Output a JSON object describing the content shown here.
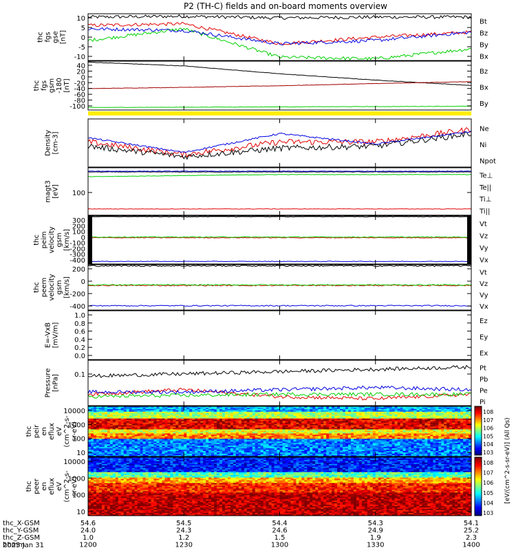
{
  "title": "P2 (TH-C) fields and on-board moments overview",
  "panels": [
    {
      "id": "fgs-gse",
      "ylabel": [
        "thc",
        "fgs",
        "gse",
        "[nT]"
      ],
      "ticks": [
        "10",
        "5",
        "0",
        "-5",
        "-10"
      ],
      "legend": [
        {
          "label": "Bt",
          "color": "#000000"
        },
        {
          "label": "Bz",
          "color": "#e00000"
        },
        {
          "label": "By",
          "color": "#00d000"
        },
        {
          "label": "Bx",
          "color": "#0000e0"
        }
      ]
    },
    {
      "id": "fgs-gsm",
      "ylabel": [
        "thc",
        "fgs",
        "gsm",
        "-180",
        "[nT]"
      ],
      "ticks": [
        "40",
        "20",
        "0",
        "-20",
        "-40",
        "-60",
        "-80",
        "-100"
      ],
      "legend": [
        {
          "label": "Bz",
          "color": "#a00000"
        },
        {
          "label": "Bx",
          "color": "#000000"
        },
        {
          "label": "By",
          "color": "#00d000"
        }
      ]
    },
    {
      "id": "density",
      "ylabel": [
        "Density",
        "[cm-3]"
      ],
      "ticks": [],
      "legend": [
        {
          "label": "Ne",
          "color": "#e00000"
        },
        {
          "label": "Ni",
          "color": "#000000"
        },
        {
          "label": "Npot",
          "color": "#0000e0"
        }
      ]
    },
    {
      "id": "temperature",
      "ylabel": [
        "magt3",
        "[eV]"
      ],
      "ticks": [
        "100"
      ],
      "legend": [
        {
          "label": "Te⊥",
          "color": "#e00000"
        },
        {
          "label": "Te||",
          "color": "#000000"
        },
        {
          "label": "Ti⊥",
          "color": "#0000e0"
        },
        {
          "label": "Ti||",
          "color": "#00d000"
        }
      ]
    },
    {
      "id": "peim-velocity",
      "ylabel": [
        "thc",
        "peim",
        "velocity",
        "gsm",
        "[km/s]"
      ],
      "ticks": [
        "300",
        "200",
        "100",
        "0",
        "-100",
        "-200",
        "-300",
        "-400"
      ],
      "legend": [
        {
          "label": "Vt",
          "color": "#000000"
        },
        {
          "label": "Vz",
          "color": "#e00000"
        },
        {
          "label": "Vy",
          "color": "#00d000"
        },
        {
          "label": "Vx",
          "color": "#0000e0"
        }
      ]
    },
    {
      "id": "peem-velocity",
      "ylabel": [
        "thc",
        "peem",
        "velocity",
        "gsm",
        "[km/s]"
      ],
      "ticks": [
        "200",
        "0",
        "-200",
        "-400"
      ],
      "legend": [
        {
          "label": "Vt",
          "color": "#000000"
        },
        {
          "label": "Vz",
          "color": "#e00000"
        },
        {
          "label": "Vy",
          "color": "#00d000"
        },
        {
          "label": "Vx",
          "color": "#0000e0"
        }
      ]
    },
    {
      "id": "efield",
      "ylabel": [
        "E=-VxB",
        "[mV/m]"
      ],
      "ticks": [
        "1.0",
        "0.8",
        "0.6",
        "0.4",
        "0.2",
        "0.0"
      ],
      "legend": [
        {
          "label": "Ez",
          "color": "#e00000"
        },
        {
          "label": "Ey",
          "color": "#00d000"
        },
        {
          "label": "Ex",
          "color": "#0000e0"
        }
      ]
    },
    {
      "id": "pressure",
      "ylabel": [
        "Pressure",
        "[nPa]"
      ],
      "ticks": [
        "0.1"
      ],
      "legend": [
        {
          "label": "Pt",
          "color": "#000000"
        },
        {
          "label": "Pb",
          "color": "#e00000"
        },
        {
          "label": "Pe",
          "color": "#00d000"
        },
        {
          "label": "Pi",
          "color": "#0000e0"
        }
      ]
    },
    {
      "id": "peir-spec",
      "ylabel": [
        "thc",
        "peir",
        "en",
        "eflux",
        "eV",
        "(cm^2-s-",
        "sr-eV)"
      ],
      "ticks": [
        "10000",
        "1000",
        "100",
        "10"
      ]
    },
    {
      "id": "peer-spec",
      "ylabel": [
        "thc",
        "peer",
        "en",
        "eflux",
        "eV",
        "(cm^2-s-",
        "sr-eV)"
      ],
      "ticks": [
        "10000",
        "1000",
        "100",
        "10"
      ]
    }
  ],
  "colorbar": {
    "label": "[eV/(cm^2-s-sr-eV)] (All Qs)",
    "ticks_upper": [
      "10^8",
      "10^7",
      "10^6",
      "10^5",
      "10^4",
      "10^3"
    ],
    "ticks_lower": [
      "10^8",
      "10^7",
      "10^6",
      "10^5",
      "10^4",
      "10^3"
    ]
  },
  "xaxis_rows": [
    {
      "label": "thc_X-GSM",
      "values": [
        "54.6",
        "54.5",
        "54.4",
        "54.3",
        "54.1"
      ]
    },
    {
      "label": "thc_Y-GSM",
      "values": [
        "24.0",
        "24.3",
        "24.6",
        "24.9",
        "25.2"
      ]
    },
    {
      "label": "thc_Z-GSM",
      "values": [
        "1.0",
        "1.2",
        "1.5",
        "1.9",
        "2.3"
      ]
    },
    {
      "label": "hhmm",
      "values": [
        "1200",
        "1230",
        "1300",
        "1330",
        "1400"
      ]
    }
  ],
  "date_label": "2025 Jan 31",
  "chart_data": {
    "type": "line",
    "title": "P2 (TH-C) fields and on-board moments overview",
    "x": [
      "1200",
      "1230",
      "1300",
      "1330",
      "1400"
    ],
    "xlabel": "hhmm",
    "panels": [
      {
        "id": "fgs-gse",
        "ylim": [
          -14,
          14
        ],
        "series": [
          {
            "name": "Bt",
            "values": [
              12,
              12.5,
              11.5,
              12,
              12
            ]
          },
          {
            "name": "Bz",
            "values": [
              7,
              8,
              -4,
              0,
              3
            ]
          },
          {
            "name": "By",
            "values": [
              -2,
              5,
              -12,
              -13,
              -7
            ]
          },
          {
            "name": "Bx",
            "values": [
              5,
              4,
              -4,
              -2,
              3
            ]
          }
        ]
      },
      {
        "id": "fgs-gsm",
        "ylim": [
          -110,
          45
        ],
        "series": [
          {
            "name": "Bx",
            "values": [
              42,
              30,
              5,
              -15,
              -32
            ]
          },
          {
            "name": "Bz",
            "values": [
              -42,
              -38,
              -33,
              -26,
              -20
            ]
          },
          {
            "name": "By",
            "values": [
              -102,
              -101,
              -100,
              -99,
              -98
            ]
          }
        ]
      },
      {
        "id": "density",
        "series": [
          {
            "name": "Ne",
            "values": [
              0.6,
              0.3,
              0.6,
              0.6,
              0.9
            ]
          },
          {
            "name": "Ni",
            "values": [
              0.5,
              0.25,
              0.45,
              0.5,
              0.8
            ]
          },
          {
            "name": "Npot",
            "values": [
              0.7,
              0.35,
              0.8,
              0.55,
              0.85
            ]
          }
        ]
      },
      {
        "id": "temperature",
        "series": [
          {
            "name": "Te||",
            "values": [
              1300,
              1300,
              1300,
              1300,
              1300
            ]
          },
          {
            "name": "Ti⊥",
            "values": [
              1400,
              1400,
              1400,
              1400,
              1400
            ]
          },
          {
            "name": "Ti||",
            "values": [
              800,
              900,
              1000,
              1000,
              1000
            ]
          },
          {
            "name": "Te⊥",
            "values": [
              30,
              30,
              30,
              30,
              30
            ]
          }
        ]
      },
      {
        "id": "peim-velocity",
        "ylim": [
          -420,
          330
        ],
        "series": [
          {
            "name": "Vt",
            "values": [
              320,
              320,
              320,
              320,
              320
            ]
          },
          {
            "name": "Vz",
            "values": [
              -10,
              -10,
              -10,
              -10,
              -10
            ]
          },
          {
            "name": "Vy",
            "values": [
              0,
              0,
              0,
              0,
              0
            ]
          },
          {
            "name": "Vx",
            "values": [
              -380,
              -380,
              -380,
              -380,
              -380
            ]
          }
        ]
      },
      {
        "id": "peem-velocity",
        "ylim": [
          -450,
          380
        ],
        "series": [
          {
            "name": "Vt",
            "values": [
              360,
              360,
              360,
              360,
              360
            ]
          },
          {
            "name": "Vz",
            "values": [
              0,
              0,
              0,
              0,
              0
            ]
          },
          {
            "name": "Vy",
            "values": [
              10,
              10,
              10,
              10,
              10
            ]
          },
          {
            "name": "Vx",
            "values": [
              -370,
              -370,
              -370,
              -370,
              -370
            ]
          }
        ]
      },
      {
        "id": "efield",
        "ylim": [
          -0.1,
          1.0
        ],
        "series": []
      },
      {
        "id": "pressure",
        "series": [
          {
            "name": "Pt",
            "values": [
              0.13,
              0.14,
              0.15,
              0.16,
              0.17
            ]
          },
          {
            "name": "Pb",
            "values": [
              0.05,
              0.07,
              0.04,
              0.03,
              0.05
            ]
          },
          {
            "name": "Pe",
            "values": [
              0.04,
              0.045,
              0.05,
              0.05,
              0.05
            ]
          },
          {
            "name": "Pi",
            "values": [
              0.06,
              0.06,
              0.07,
              0.08,
              0.07
            ]
          }
        ]
      }
    ]
  }
}
